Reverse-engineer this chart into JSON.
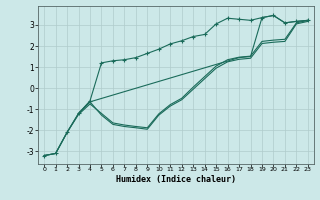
{
  "xlabel": "Humidex (Indice chaleur)",
  "background_color": "#cce8e8",
  "grid_color": "#b0cccc",
  "line_color": "#1a6b5a",
  "xlim": [
    -0.5,
    23.5
  ],
  "ylim": [
    -3.6,
    3.9
  ],
  "yticks": [
    -3,
    -2,
    -1,
    0,
    1,
    2,
    3
  ],
  "xticks": [
    0,
    1,
    2,
    3,
    4,
    5,
    6,
    7,
    8,
    9,
    10,
    11,
    12,
    13,
    14,
    15,
    16,
    17,
    18,
    19,
    20,
    21,
    22,
    23
  ],
  "curve1_x": [
    0,
    1,
    2,
    3,
    4,
    5,
    6,
    7,
    8,
    9,
    10,
    11,
    12,
    13,
    14,
    15,
    16,
    17,
    18,
    19,
    20,
    21,
    22,
    23
  ],
  "curve1_y": [
    -3.2,
    -3.1,
    -2.1,
    -1.2,
    -0.6,
    1.2,
    1.3,
    1.35,
    1.45,
    1.65,
    1.85,
    2.1,
    2.25,
    2.45,
    2.55,
    3.05,
    3.32,
    3.27,
    3.22,
    3.35,
    3.45,
    3.1,
    3.17,
    3.22
  ],
  "curve2_x": [
    0,
    1,
    2,
    3,
    4,
    5,
    6,
    7,
    8,
    9,
    10,
    11,
    12,
    13,
    14,
    15,
    16,
    17,
    18,
    19,
    20,
    21,
    22,
    23
  ],
  "curve2_y": [
    -3.2,
    -3.1,
    -2.1,
    -1.25,
    -0.75,
    -1.2,
    -1.65,
    -1.75,
    -1.82,
    -1.88,
    -1.22,
    -0.78,
    -0.48,
    0.05,
    0.55,
    1.05,
    1.35,
    1.47,
    1.52,
    2.22,
    2.28,
    2.32,
    3.1,
    3.22
  ],
  "curve3_x": [
    0,
    1,
    2,
    3,
    4,
    5,
    6,
    7,
    8,
    9,
    10,
    11,
    12,
    13,
    14,
    15,
    16,
    17,
    18,
    19,
    20,
    21,
    22,
    23
  ],
  "curve3_y": [
    -3.2,
    -3.1,
    -2.1,
    -1.2,
    -0.65,
    -1.28,
    -1.72,
    -1.82,
    -1.88,
    -1.95,
    -1.28,
    -0.85,
    -0.55,
    -0.05,
    0.45,
    0.95,
    1.25,
    1.37,
    1.42,
    2.12,
    2.18,
    2.22,
    3.05,
    3.17
  ],
  "curve4_x": [
    3,
    4,
    17,
    18,
    19,
    20,
    21,
    22,
    23
  ],
  "curve4_y": [
    -1.2,
    -0.65,
    1.45,
    1.5,
    3.35,
    3.45,
    3.1,
    3.17,
    3.22
  ]
}
